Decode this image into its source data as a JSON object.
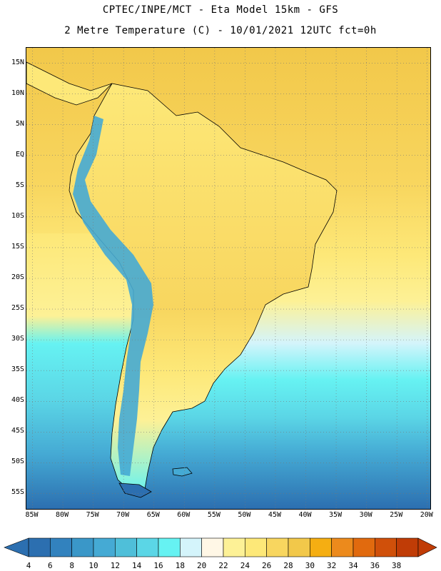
{
  "title": {
    "line1": "CPTEC/INPE/MCT -  Eta Model 15km - GFS",
    "line2": "2 Metre Temperature (C) - 10/01/2021 12UTC fct=0h"
  },
  "map": {
    "lat_labels": [
      "15N",
      "10N",
      "5N",
      "EQ",
      "5S",
      "10S",
      "15S",
      "20S",
      "25S",
      "30S",
      "35S",
      "40S",
      "45S",
      "50S",
      "55S"
    ],
    "lon_labels": [
      "85W",
      "80W",
      "75W",
      "70W",
      "65W",
      "60W",
      "55W",
      "50W",
      "45W",
      "40W",
      "35W",
      "30W",
      "25W",
      "20W"
    ],
    "lat_range": [
      17.5,
      -57.5
    ],
    "lon_range": [
      -86,
      -19.5
    ]
  },
  "colorbar": {
    "labels": [
      "4",
      "6",
      "8",
      "10",
      "12",
      "14",
      "16",
      "18",
      "20",
      "22",
      "24",
      "26",
      "28",
      "30",
      "32",
      "34",
      "36",
      "38"
    ],
    "colors": [
      "#2c6fb0",
      "#3282be",
      "#3a97c8",
      "#45aad4",
      "#4fbfd9",
      "#5bd6e6",
      "#66f2f2",
      "#d4f4fb",
      "#fff7e6",
      "#fdf196",
      "#fde878",
      "#f8d65f",
      "#f2c84a",
      "#f5ae12",
      "#ec8a1c",
      "#e16a0e",
      "#d0500a",
      "#c03c06"
    ]
  }
}
